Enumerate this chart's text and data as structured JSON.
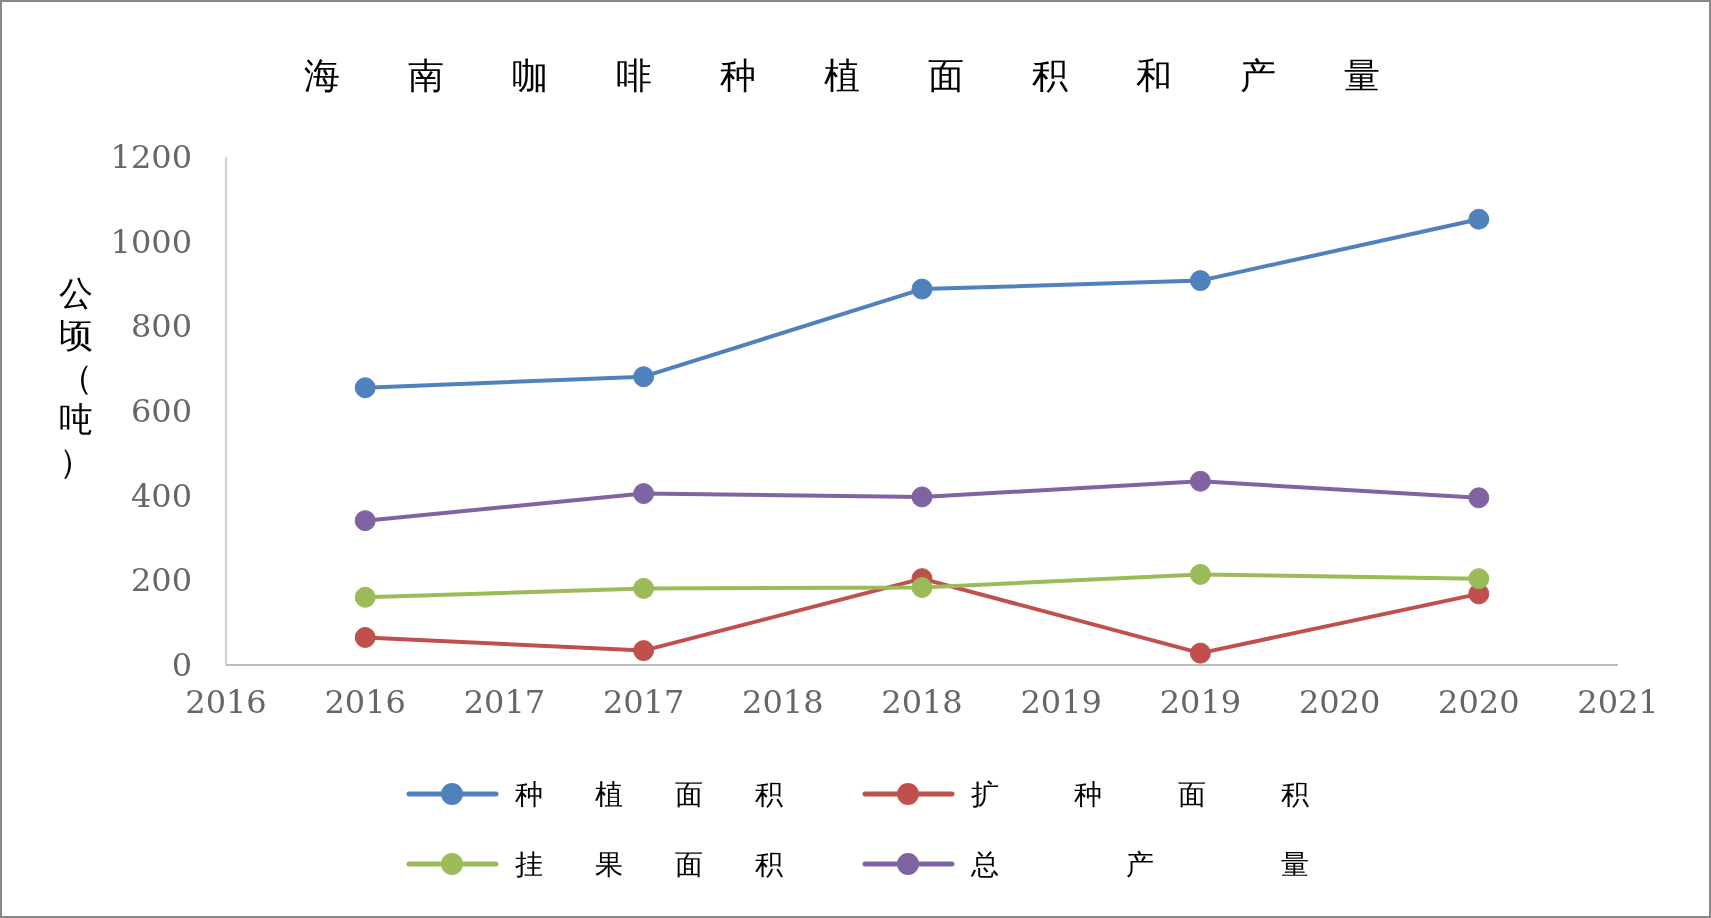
{
  "chart_data": {
    "type": "line",
    "title": "海南咖啡种植面积和产量",
    "ylabel": "公顷（吨）",
    "categories": [
      "2016",
      "2016",
      "2017",
      "2017",
      "2018",
      "2018",
      "2019",
      "2019",
      "2020",
      "2020",
      "2021"
    ],
    "ylim": [
      0,
      1200
    ],
    "yticks": [
      0,
      200,
      400,
      600,
      800,
      1000,
      1200
    ],
    "series": [
      {
        "name": "种植面积",
        "color": "#4f81bd",
        "values": [
          null,
          655,
          null,
          681,
          null,
          888,
          null,
          908,
          null,
          1053,
          null
        ]
      },
      {
        "name": "扩种面积",
        "color": "#c0504d",
        "values": [
          null,
          65,
          null,
          34,
          null,
          204,
          null,
          28,
          null,
          168,
          null
        ]
      },
      {
        "name": "挂果面积",
        "color": "#9bbb59",
        "values": [
          null,
          160,
          null,
          181,
          null,
          183,
          null,
          214,
          null,
          204,
          null
        ]
      },
      {
        "name": "总产量",
        "color": "#8064a2",
        "values": [
          null,
          341,
          null,
          405,
          null,
          397,
          null,
          434,
          null,
          395,
          null
        ]
      }
    ],
    "marker": "circle",
    "legend": "bottom"
  }
}
